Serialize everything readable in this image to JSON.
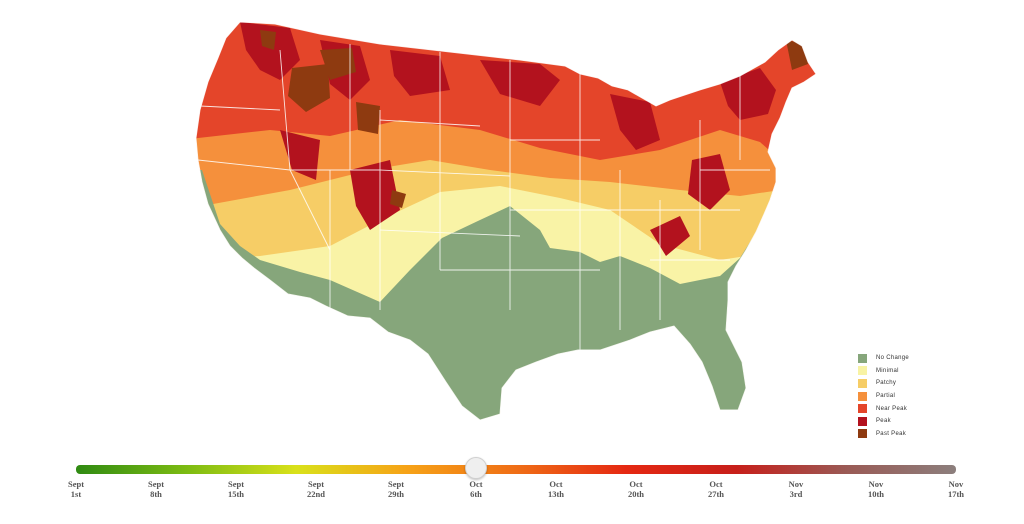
{
  "map": {
    "name": "",
    "region_colors": {
      "southeast_texas": "#86a67b",
      "central_band": "#f9f3a6",
      "patchy_band": "#f6cd66",
      "partial_band": "#f5903c",
      "near_peak": "#e4452a",
      "peak": "#b3121e",
      "past_peak": "#8e3a10"
    }
  },
  "legend": {
    "items": [
      {
        "label": "No Change",
        "color": "#86a67b"
      },
      {
        "label": "Minimal",
        "color": "#f8f3a4"
      },
      {
        "label": "Patchy",
        "color": "#f6cd66"
      },
      {
        "label": "Partial",
        "color": "#f5903c"
      },
      {
        "label": "Near Peak",
        "color": "#e4452a"
      },
      {
        "label": "Peak",
        "color": "#b3121e"
      },
      {
        "label": "Past Peak",
        "color": "#8e3a10"
      }
    ]
  },
  "timeline": {
    "selected_date": "Oct 6th",
    "selected_index": 5,
    "gradient_colors": [
      "#2f8a12",
      "#7cbb12",
      "#d9e11a",
      "#f6a317",
      "#ef6e16",
      "#e52812",
      "#c71f1a",
      "#9a5a55",
      "#8c7f7d"
    ],
    "ticks": [
      {
        "line1": "Sept",
        "line2": "1st"
      },
      {
        "line1": "Sept",
        "line2": "8th"
      },
      {
        "line1": "Sept",
        "line2": "15th"
      },
      {
        "line1": "Sept",
        "line2": "22nd"
      },
      {
        "line1": "Sept",
        "line2": "29th"
      },
      {
        "line1": "Oct",
        "line2": "6th"
      },
      {
        "line1": "Oct",
        "line2": "13th"
      },
      {
        "line1": "Oct",
        "line2": "20th"
      },
      {
        "line1": "Oct",
        "line2": "27th"
      },
      {
        "line1": "Nov",
        "line2": "3rd"
      },
      {
        "line1": "Nov",
        "line2": "10th"
      },
      {
        "line1": "Nov",
        "line2": "17th"
      }
    ]
  }
}
